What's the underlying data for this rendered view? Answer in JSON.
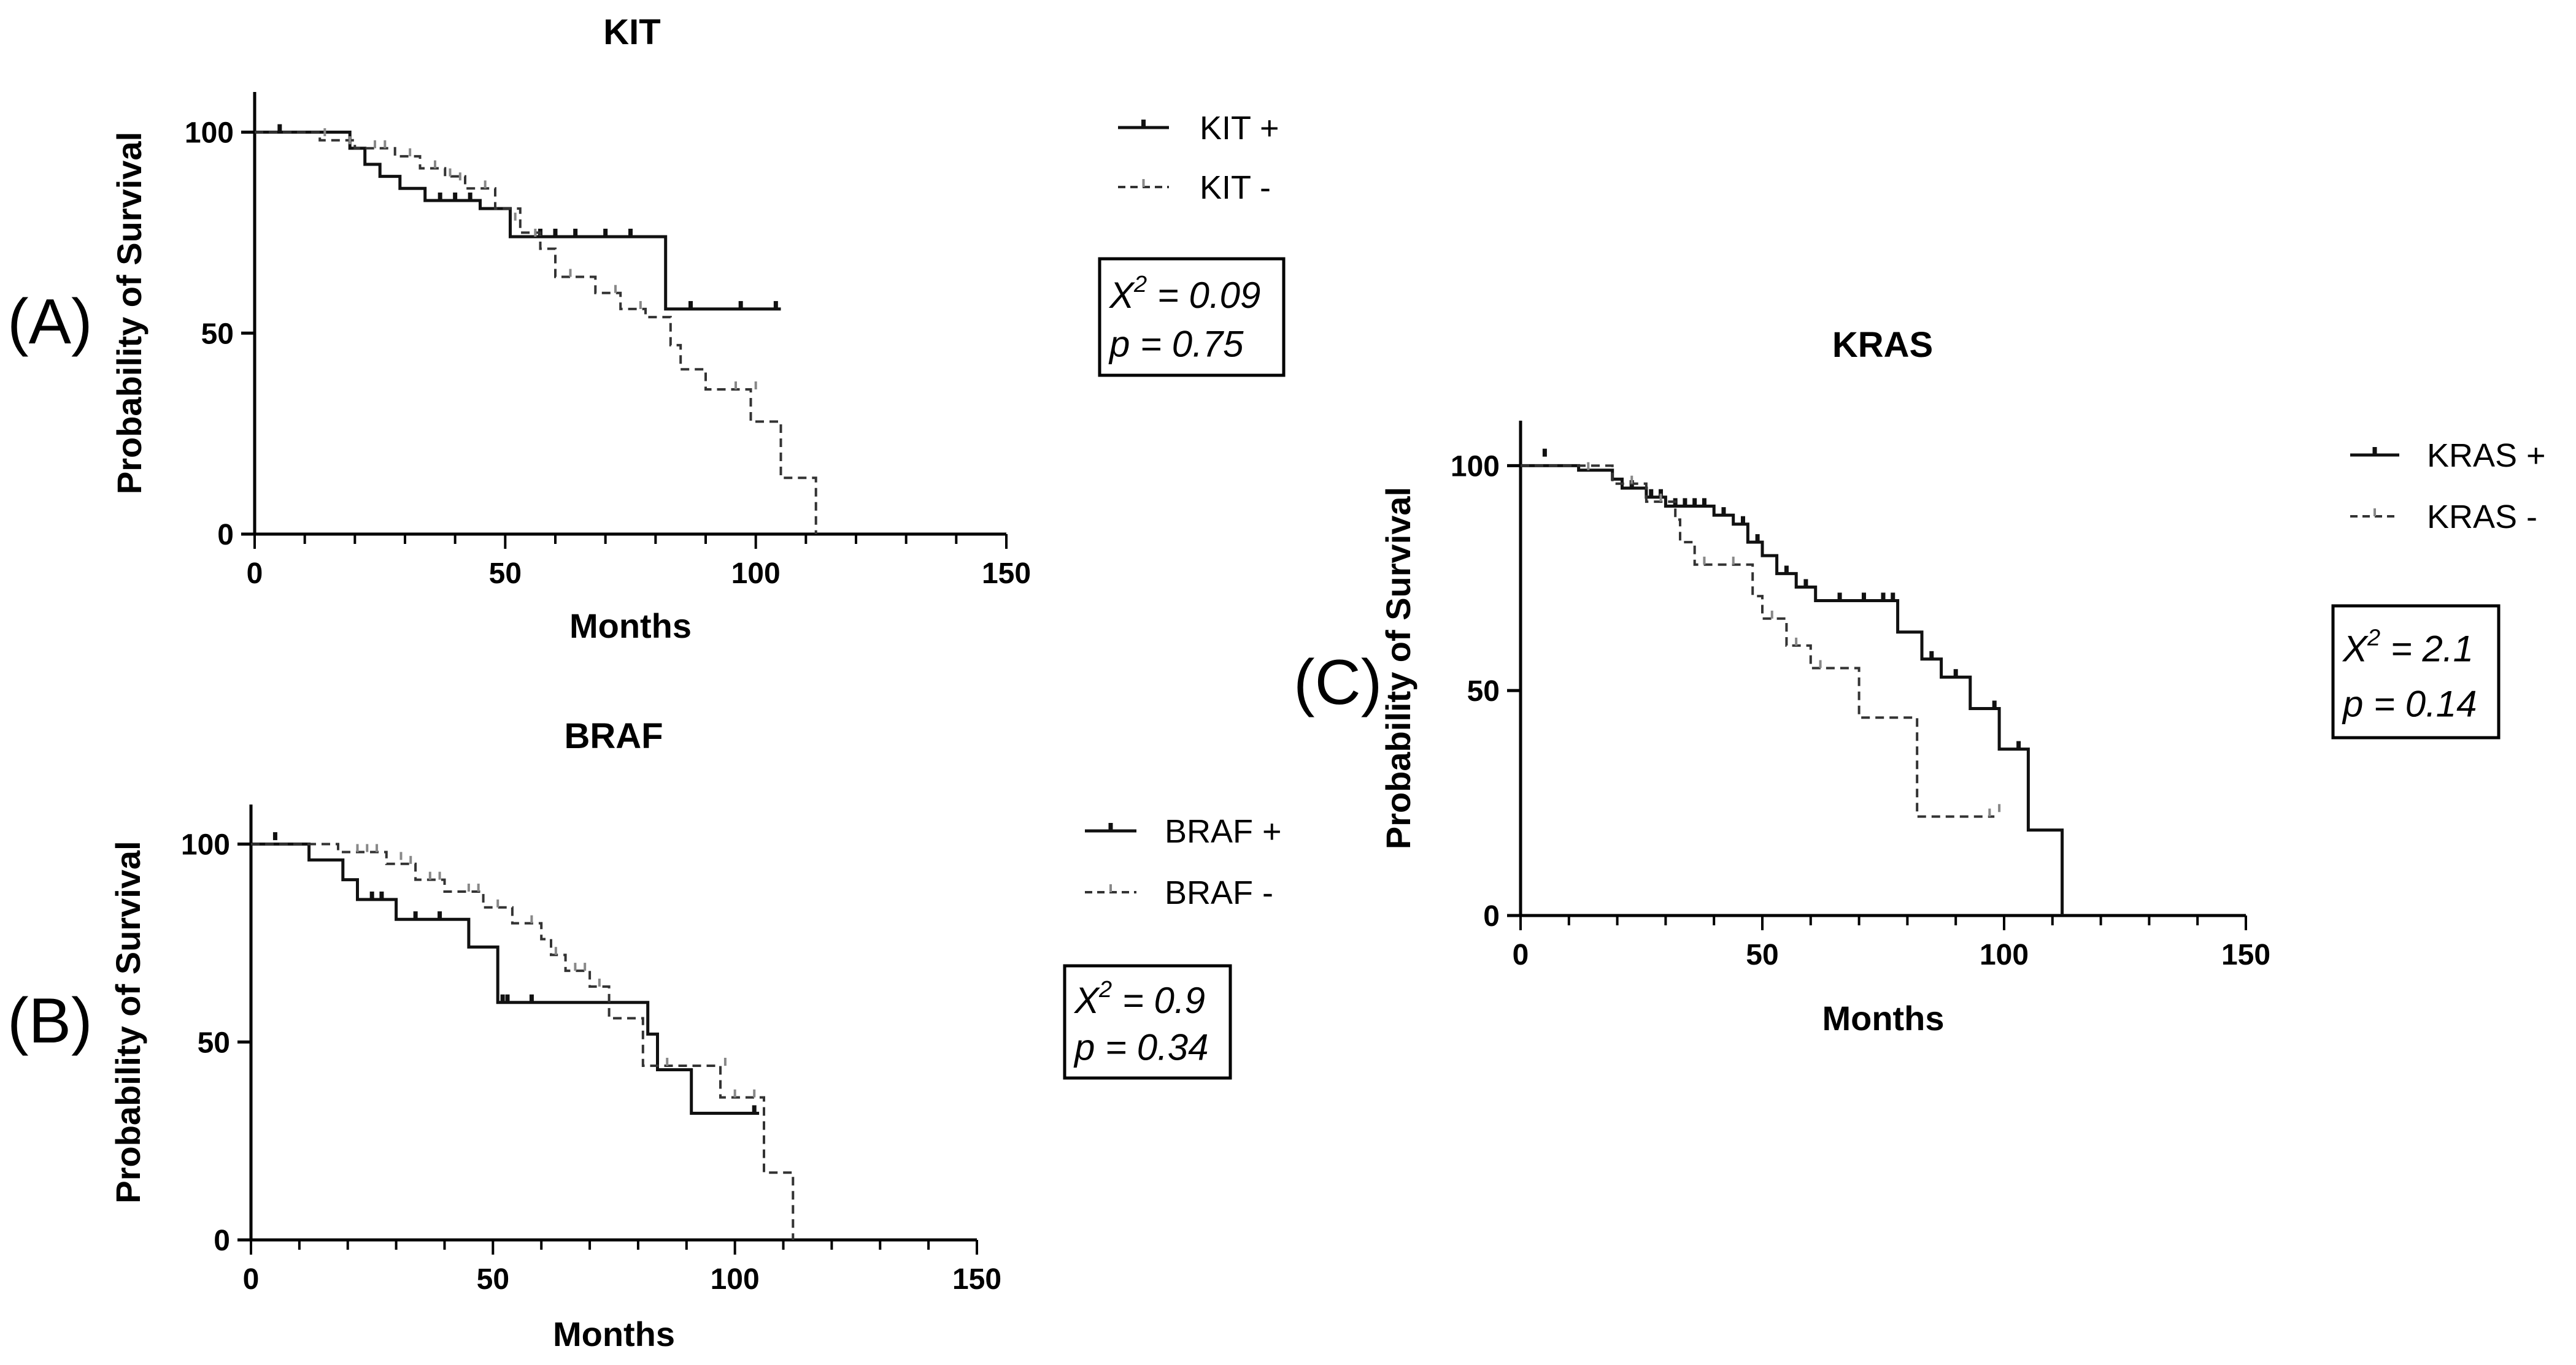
{
  "chart_data": [
    {
      "type": "line",
      "subtype": "kaplan-meier",
      "panel_label": "(A)",
      "title": "KIT",
      "xlabel": "Months",
      "ylabel": "Probability of Survival",
      "xlim": [
        0,
        150
      ],
      "ylim": [
        0,
        110
      ],
      "xticks": [
        0,
        50,
        100,
        150
      ],
      "yticks": [
        0,
        50,
        100
      ],
      "xtick_labels": [
        "0",
        "50",
        "100",
        "150"
      ],
      "ytick_labels": [
        "0",
        "50",
        "100"
      ],
      "legend_position": "top-right",
      "stats": {
        "chi_sq_label": "X",
        "chi_sq_sup": "2",
        "chi_sq_value": " = 0.09",
        "p_text": "p = 0.75"
      },
      "series": [
        {
          "name": "KIT +",
          "style": "solid",
          "color": "#111111",
          "steps": [
            [
              0,
              100
            ],
            [
              19,
              100
            ],
            [
              19,
              96
            ],
            [
              22,
              96
            ],
            [
              22,
              92
            ],
            [
              25,
              92
            ],
            [
              25,
              89
            ],
            [
              29,
              89
            ],
            [
              29,
              86
            ],
            [
              34,
              86
            ],
            [
              34,
              83
            ],
            [
              45,
              83
            ],
            [
              45,
              81
            ],
            [
              51,
              81
            ],
            [
              51,
              74
            ],
            [
              82,
              74
            ],
            [
              82,
              56
            ],
            [
              105,
              56
            ]
          ],
          "censor": [
            [
              5,
              100
            ],
            [
              37,
              83
            ],
            [
              40,
              83
            ],
            [
              43,
              83
            ],
            [
              57,
              74
            ],
            [
              60,
              74
            ],
            [
              64,
              74
            ],
            [
              70,
              74
            ],
            [
              75,
              74
            ],
            [
              87,
              56
            ],
            [
              97,
              56
            ],
            [
              104,
              56
            ]
          ]
        },
        {
          "name": "KIT -",
          "style": "dashed",
          "color": "#333333",
          "steps": [
            [
              0,
              100
            ],
            [
              13,
              100
            ],
            [
              13,
              98
            ],
            [
              20,
              98
            ],
            [
              20,
              96
            ],
            [
              28,
              96
            ],
            [
              28,
              94
            ],
            [
              33,
              94
            ],
            [
              33,
              91
            ],
            [
              38,
              91
            ],
            [
              38,
              89
            ],
            [
              42,
              89
            ],
            [
              42,
              86
            ],
            [
              48,
              86
            ],
            [
              48,
              81
            ],
            [
              53,
              81
            ],
            [
              53,
              75
            ],
            [
              57,
              75
            ],
            [
              57,
              71
            ],
            [
              60,
              71
            ],
            [
              60,
              64
            ],
            [
              68,
              64
            ],
            [
              68,
              60
            ],
            [
              73,
              60
            ],
            [
              73,
              56
            ],
            [
              78,
              56
            ],
            [
              78,
              54
            ],
            [
              83,
              54
            ],
            [
              83,
              47
            ],
            [
              85,
              47
            ],
            [
              85,
              41
            ],
            [
              90,
              41
            ],
            [
              90,
              36
            ],
            [
              99,
              36
            ],
            [
              99,
              28
            ],
            [
              105,
              28
            ],
            [
              105,
              14
            ],
            [
              112,
              14
            ],
            [
              112,
              0
            ]
          ],
          "censor": [
            [
              14,
              99
            ],
            [
              19,
              97
            ],
            [
              24,
              96
            ],
            [
              26,
              96
            ],
            [
              31,
              94
            ],
            [
              36,
              91
            ],
            [
              39,
              89
            ],
            [
              41,
              88
            ],
            [
              46,
              86
            ],
            [
              52,
              78
            ],
            [
              56,
              74
            ],
            [
              63,
              64
            ],
            [
              72,
              60
            ],
            [
              77,
              56
            ],
            [
              96,
              36
            ],
            [
              100,
              36
            ]
          ]
        }
      ]
    },
    {
      "type": "line",
      "subtype": "kaplan-meier",
      "panel_label": "(B)",
      "title": "BRAF",
      "xlabel": "Months",
      "ylabel": "Probability of Survival",
      "xlim": [
        0,
        150
      ],
      "ylim": [
        0,
        110
      ],
      "xticks": [
        0,
        50,
        100,
        150
      ],
      "yticks": [
        0,
        50,
        100
      ],
      "xtick_labels": [
        "0",
        "50",
        "100",
        "150"
      ],
      "ytick_labels": [
        "0",
        "50",
        "100"
      ],
      "legend_position": "top-right",
      "stats": {
        "chi_sq_label": "X",
        "chi_sq_sup": "2",
        "chi_sq_value": " = 0.9",
        "p_text": "p = 0.34"
      },
      "series": [
        {
          "name": "BRAF +",
          "style": "solid",
          "color": "#111111",
          "steps": [
            [
              0,
              100
            ],
            [
              12,
              100
            ],
            [
              12,
              96
            ],
            [
              19,
              96
            ],
            [
              19,
              91
            ],
            [
              22,
              91
            ],
            [
              22,
              86
            ],
            [
              30,
              86
            ],
            [
              30,
              81
            ],
            [
              45,
              81
            ],
            [
              45,
              74
            ],
            [
              51,
              74
            ],
            [
              51,
              60
            ],
            [
              82,
              60
            ],
            [
              82,
              52
            ],
            [
              84,
              52
            ],
            [
              84,
              43
            ],
            [
              91,
              43
            ],
            [
              91,
              32
            ],
            [
              105,
              32
            ]
          ],
          "censor": [
            [
              5,
              101
            ],
            [
              25,
              86
            ],
            [
              27,
              86
            ],
            [
              34,
              81
            ],
            [
              39,
              81
            ],
            [
              52,
              60
            ],
            [
              53,
              60
            ],
            [
              58,
              60
            ],
            [
              104,
              32
            ]
          ]
        },
        {
          "name": "BRAF -",
          "style": "dashed",
          "color": "#333333",
          "steps": [
            [
              0,
              100
            ],
            [
              18,
              100
            ],
            [
              18,
              98
            ],
            [
              28,
              98
            ],
            [
              28,
              95
            ],
            [
              34,
              95
            ],
            [
              34,
              91
            ],
            [
              40,
              91
            ],
            [
              40,
              88
            ],
            [
              48,
              88
            ],
            [
              48,
              84
            ],
            [
              54,
              84
            ],
            [
              54,
              80
            ],
            [
              60,
              80
            ],
            [
              60,
              76
            ],
            [
              62,
              76
            ],
            [
              62,
              72
            ],
            [
              65,
              72
            ],
            [
              65,
              68
            ],
            [
              70,
              68
            ],
            [
              70,
              64
            ],
            [
              74,
              64
            ],
            [
              74,
              56
            ],
            [
              81,
              56
            ],
            [
              81,
              44
            ],
            [
              97,
              44
            ],
            [
              97,
              36
            ],
            [
              106,
              36
            ],
            [
              106,
              17
            ],
            [
              112,
              17
            ],
            [
              112,
              0
            ]
          ],
          "censor": [
            [
              22,
              98
            ],
            [
              24,
              98
            ],
            [
              26,
              98
            ],
            [
              31,
              96
            ],
            [
              33,
              95
            ],
            [
              37,
              91
            ],
            [
              39,
              91
            ],
            [
              45,
              88
            ],
            [
              47,
              88
            ],
            [
              51,
              84
            ],
            [
              58,
              80
            ],
            [
              63,
              72
            ],
            [
              67,
              68
            ],
            [
              69,
              68
            ],
            [
              72,
              64
            ],
            [
              86,
              44
            ],
            [
              98,
              44
            ],
            [
              100,
              36
            ],
            [
              104,
              36
            ]
          ]
        }
      ]
    },
    {
      "type": "line",
      "subtype": "kaplan-meier",
      "panel_label": "(C)",
      "title": "KRAS",
      "xlabel": "Months",
      "ylabel": "Probability of Survival",
      "xlim": [
        0,
        150
      ],
      "ylim": [
        0,
        110
      ],
      "xticks": [
        0,
        50,
        100,
        150
      ],
      "yticks": [
        0,
        50,
        100
      ],
      "xtick_labels": [
        "0",
        "50",
        "100",
        "150"
      ],
      "ytick_labels": [
        "0",
        "50",
        "100"
      ],
      "legend_position": "top-right",
      "stats": {
        "chi_sq_label": "X",
        "chi_sq_sup": "2",
        "chi_sq_value": " = 2.1",
        "p_text": "p = 0.14"
      },
      "series": [
        {
          "name": "KRAS +",
          "style": "solid",
          "color": "#111111",
          "steps": [
            [
              0,
              100
            ],
            [
              12,
              100
            ],
            [
              12,
              99
            ],
            [
              19,
              99
            ],
            [
              19,
              97
            ],
            [
              21,
              97
            ],
            [
              21,
              95
            ],
            [
              26,
              95
            ],
            [
              26,
              93
            ],
            [
              30,
              93
            ],
            [
              30,
              91
            ],
            [
              40,
              91
            ],
            [
              40,
              89
            ],
            [
              44,
              89
            ],
            [
              44,
              87
            ],
            [
              47,
              87
            ],
            [
              47,
              83
            ],
            [
              50,
              83
            ],
            [
              50,
              80
            ],
            [
              53,
              80
            ],
            [
              53,
              76
            ],
            [
              57,
              76
            ],
            [
              57,
              73
            ],
            [
              61,
              73
            ],
            [
              61,
              70
            ],
            [
              78,
              70
            ],
            [
              78,
              63
            ],
            [
              83,
              63
            ],
            [
              83,
              57
            ],
            [
              87,
              57
            ],
            [
              87,
              53
            ],
            [
              93,
              53
            ],
            [
              93,
              46
            ],
            [
              99,
              46
            ],
            [
              99,
              37
            ],
            [
              105,
              37
            ],
            [
              105,
              19
            ],
            [
              112,
              19
            ],
            [
              112,
              0
            ]
          ],
          "censor": [
            [
              5,
              102
            ],
            [
              23,
              95
            ],
            [
              27,
              93
            ],
            [
              29,
              93
            ],
            [
              32,
              91
            ],
            [
              34,
              91
            ],
            [
              36,
              91
            ],
            [
              38,
              91
            ],
            [
              42,
              89
            ],
            [
              46,
              87
            ],
            [
              49,
              83
            ],
            [
              55,
              76
            ],
            [
              59,
              73
            ],
            [
              66,
              70
            ],
            [
              71,
              70
            ],
            [
              75,
              70
            ],
            [
              77,
              70
            ],
            [
              85,
              57
            ],
            [
              90,
              53
            ],
            [
              98,
              46
            ],
            [
              103,
              37
            ]
          ]
        },
        {
          "name": "KRAS -",
          "style": "dashed",
          "color": "#333333",
          "steps": [
            [
              0,
              100
            ],
            [
              19,
              100
            ],
            [
              19,
              96
            ],
            [
              26,
              96
            ],
            [
              26,
              92
            ],
            [
              32,
              92
            ],
            [
              32,
              88
            ],
            [
              33,
              88
            ],
            [
              33,
              83
            ],
            [
              36,
              83
            ],
            [
              36,
              78
            ],
            [
              48,
              78
            ],
            [
              48,
              71
            ],
            [
              50,
              71
            ],
            [
              50,
              66
            ],
            [
              55,
              66
            ],
            [
              55,
              60
            ],
            [
              60,
              60
            ],
            [
              60,
              55
            ],
            [
              70,
              55
            ],
            [
              70,
              44
            ],
            [
              82,
              44
            ],
            [
              82,
              22
            ],
            [
              98,
              22
            ]
          ],
          "censor": [
            [
              14,
              99
            ],
            [
              23,
              96
            ],
            [
              29,
              92
            ],
            [
              38,
              78
            ],
            [
              44,
              78
            ],
            [
              52,
              66
            ],
            [
              57,
              60
            ],
            [
              62,
              55
            ],
            [
              97,
              22
            ],
            [
              99,
              23
            ]
          ]
        }
      ]
    }
  ]
}
